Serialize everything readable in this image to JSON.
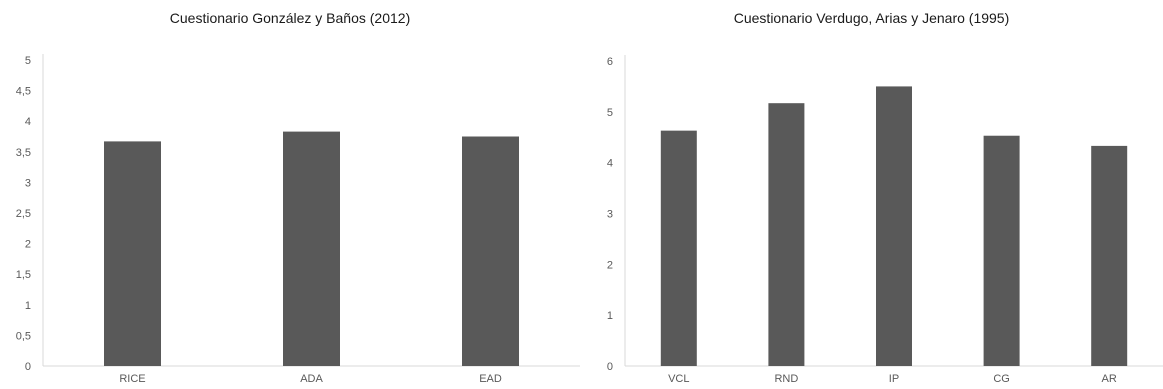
{
  "chart_data": [
    {
      "type": "bar",
      "title": "Cuestionario González y Baños (2012)",
      "xlabel": "",
      "ylabel": "",
      "categories": [
        "RICE",
        "ADA",
        "EAD"
      ],
      "values": [
        3.67,
        3.83,
        3.75
      ],
      "ylim": [
        0,
        5
      ],
      "yticks": [
        "0",
        "0,5",
        "1",
        "1,5",
        "2",
        "2,5",
        "3",
        "3,5",
        "4",
        "4,5",
        "5"
      ],
      "grid": false,
      "bar_color": "#595959"
    },
    {
      "type": "bar",
      "title": "Cuestionario Verdugo, Arias y Jenaro (1995)",
      "xlabel": "",
      "ylabel": "",
      "categories": [
        "VCL",
        "RND",
        "IP",
        "CG",
        "AR"
      ],
      "values": [
        4.63,
        5.17,
        5.5,
        4.53,
        4.33
      ],
      "ylim": [
        0,
        6
      ],
      "yticks": [
        "0",
        "1",
        "2",
        "3",
        "4",
        "5",
        "6"
      ],
      "grid": false,
      "bar_color": "#595959"
    }
  ]
}
